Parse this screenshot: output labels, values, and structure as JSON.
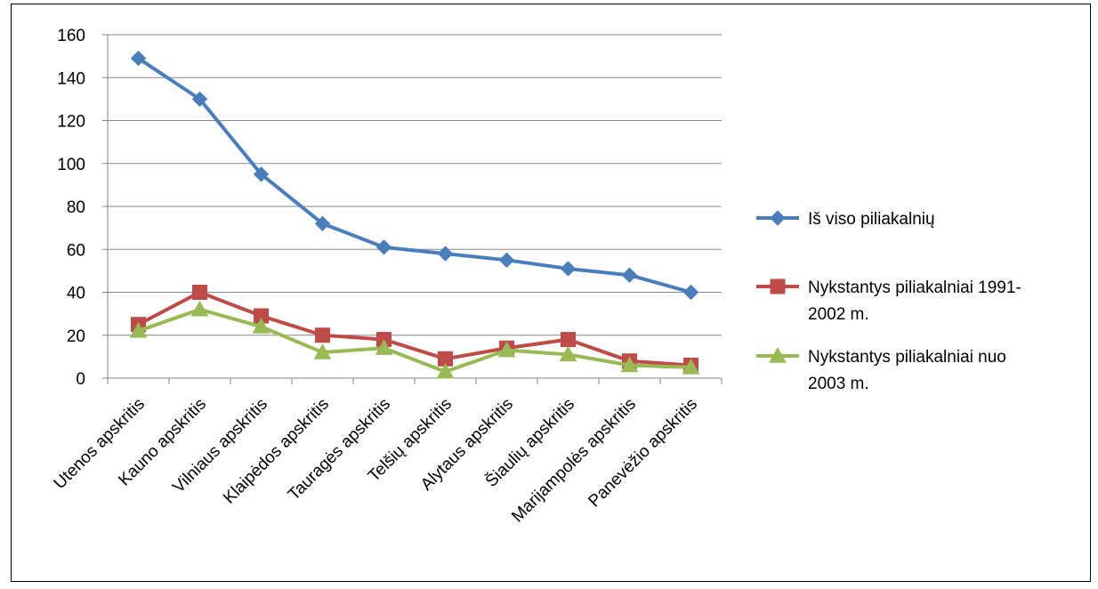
{
  "chart_data": {
    "type": "line",
    "categories": [
      "Utenos apskritis",
      "Kauno apskritis",
      "Vilniaus apskritis",
      "Klaipėdos apskritis",
      "Tauragės apskritis",
      "Telšių apskritis",
      "Alytaus apskritis",
      "Šiaulių apskritis",
      "Marijampolės apskritis",
      "Panevėžio apskritis"
    ],
    "series": [
      {
        "name": "Iš viso piliakalnių",
        "legend_lines": [
          "Iš viso piliakalnių"
        ],
        "color": "#4A7EBB",
        "marker": "diamond",
        "values": [
          149,
          130,
          95,
          72,
          61,
          58,
          55,
          51,
          48,
          40
        ]
      },
      {
        "name": "Nykstantys piliakalniai 1991-2002 m.",
        "legend_lines": [
          "Nykstantys piliakalniai 1991-",
          "2002 m."
        ],
        "color": "#BE4B48",
        "marker": "square",
        "values": [
          25,
          40,
          29,
          20,
          18,
          9,
          14,
          18,
          8,
          6
        ]
      },
      {
        "name": "Nykstantys piliakalniai nuo 2003 m.",
        "legend_lines": [
          "Nykstantys piliakalniai nuo",
          "2003 m."
        ],
        "color": "#98B954",
        "marker": "triangle",
        "values": [
          22,
          32,
          24,
          12,
          14,
          3,
          13,
          11,
          6,
          5
        ]
      }
    ],
    "y_ticks": [
      "0",
      "20",
      "40",
      "60",
      "80",
      "100",
      "120",
      "140",
      "160"
    ],
    "ylim": [
      0,
      160
    ],
    "title": "",
    "xlabel": "",
    "ylabel": "",
    "grid": true,
    "legend_position": "right"
  }
}
